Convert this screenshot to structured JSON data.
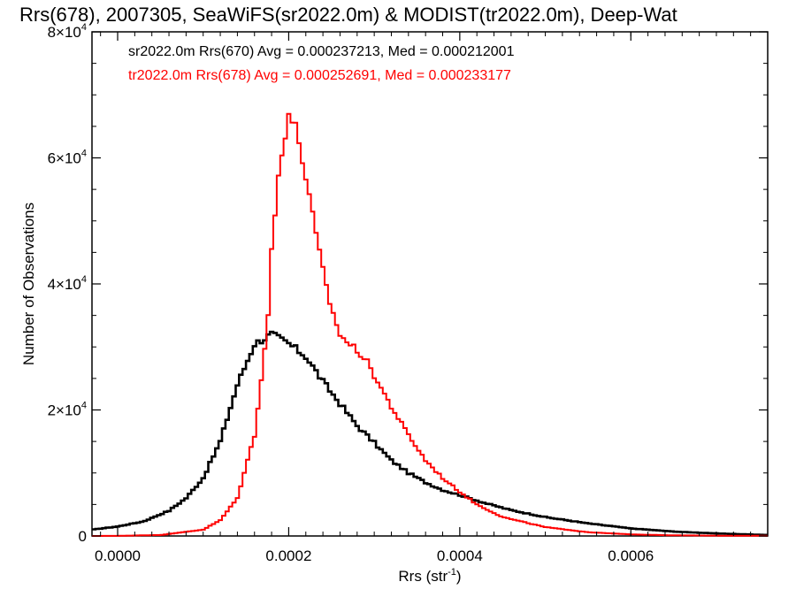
{
  "chart_data": {
    "type": "line",
    "title": "Rrs(678), 2007305, SeaWiFS(sr2022.0m) & MODIST(tr2022.0m), Deep-Wat",
    "xlabel": "Rrs (str",
    "xlabel_sup": "-1",
    "xlabel_close": ")",
    "ylabel": "Number of Observations",
    "xlim": [
      -3e-05,
      0.00076
    ],
    "ylim": [
      0,
      80000
    ],
    "grid": false,
    "x_ticks": [
      {
        "value": 0.0,
        "label": "0.0000"
      },
      {
        "value": 0.0002,
        "label": "0.0002"
      },
      {
        "value": 0.0004,
        "label": "0.0004"
      },
      {
        "value": 0.0006,
        "label": "0.0006"
      }
    ],
    "y_ticks": [
      {
        "value": 0,
        "base": "0",
        "exp": ""
      },
      {
        "value": 20000,
        "base": "2×10",
        "exp": "4"
      },
      {
        "value": 40000,
        "base": "4×10",
        "exp": "4"
      },
      {
        "value": 60000,
        "base": "6×10",
        "exp": "4"
      },
      {
        "value": 80000,
        "base": "8×10",
        "exp": "4"
      }
    ],
    "annotations": [
      {
        "text": "sr2022.0m Rrs(670) Avg = 0.000237213, Med = 0.000212001",
        "color": "#000000"
      },
      {
        "text": "tr2022.0m Rrs(678) Avg = 0.000252691, Med = 0.000233177",
        "color": "#ff0000"
      }
    ],
    "series": [
      {
        "color": "#000000",
        "x": [
          -3e-05,
          0.0,
          3e-05,
          6e-05,
          8e-05,
          0.0001,
          0.00012,
          0.00014,
          0.00016,
          0.00018,
          0.0002,
          0.00022,
          0.00024,
          0.00026,
          0.00028,
          0.0003,
          0.00032,
          0.00034,
          0.00036,
          0.00038,
          0.0004,
          0.00043,
          0.00046,
          0.0005,
          0.00055,
          0.0006,
          0.00065,
          0.0007,
          0.00076
        ],
        "y": [
          1000,
          1500,
          2300,
          4000,
          6000,
          9200,
          15000,
          24000,
          30500,
          32000,
          30500,
          28500,
          24500,
          21000,
          17500,
          14800,
          12000,
          10000,
          8500,
          7300,
          6500,
          5200,
          4100,
          3000,
          2000,
          1200,
          700,
          400,
          150
        ]
      },
      {
        "color": "#ff0000",
        "x": [
          -3e-05,
          0.0,
          5e-05,
          0.0001,
          0.00012,
          0.00014,
          0.00016,
          0.000175,
          0.00018,
          0.00019,
          0.0002,
          0.00021,
          0.00022,
          0.00023,
          0.00024,
          0.00025,
          0.00026,
          0.00027,
          0.00028,
          0.00029,
          0.0003,
          0.00032,
          0.00034,
          0.00036,
          0.00038,
          0.0004,
          0.00042,
          0.00045,
          0.0005,
          0.00055,
          0.0006,
          0.00065,
          0.0007,
          0.00076
        ],
        "y": [
          0,
          20,
          150,
          1000,
          2500,
          6000,
          16000,
          33000,
          45000,
          60000,
          67000,
          64000,
          57000,
          49000,
          42000,
          36000,
          32000,
          30500,
          29500,
          28000,
          25500,
          20500,
          16000,
          12000,
          9200,
          7000,
          5000,
          3000,
          1400,
          600,
          250,
          100,
          50,
          20
        ]
      }
    ]
  }
}
